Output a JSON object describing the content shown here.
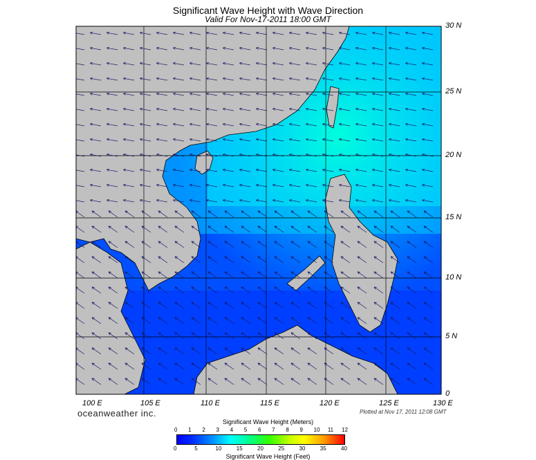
{
  "title": "Significant Wave Height with Wave Direction",
  "subtitle": "Valid For Nov-17-2011 18:00 GMT",
  "lat_labels": [
    "30 N",
    "25 N",
    "20 N",
    "15 N",
    "10 N",
    "5 N",
    "0"
  ],
  "lon_labels": [
    "100 E",
    "105 E",
    "110 E",
    "115 E",
    "120 E",
    "125 E",
    "130 E"
  ],
  "brand": "oceanweather inc.",
  "plotted": "Plotted at Nov 17, 2011 12:08 GMT",
  "legend": {
    "meters_title": "Significant Wave Height (Meters)",
    "feet_title": "Significant Wave Height (Feet)",
    "meters_ticks": [
      "0",
      "1",
      "2",
      "3",
      "4",
      "5",
      "6",
      "7",
      "8",
      "9",
      "10",
      "11",
      "12"
    ],
    "feet_ticks": [
      "0",
      "5",
      "10",
      "15",
      "20",
      "25",
      "30",
      "35",
      "40"
    ]
  },
  "colors": {
    "land": "#c0c0c0",
    "low": "#0000ff",
    "high": "#ff0000",
    "grid": "#000000"
  }
}
